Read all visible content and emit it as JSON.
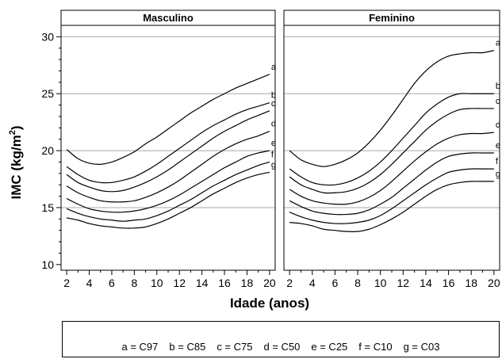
{
  "chart_data": {
    "type": "line",
    "ylabel": "IMC (kg/m²)",
    "ylabel_base": "IMC (kg/m",
    "ylabel_sup": "2",
    "ylabel_end": ")",
    "xlabel": "Idade (anos)",
    "xlim": [
      1.5,
      20.5
    ],
    "ylim": [
      9.5,
      31
    ],
    "yticks": [
      10,
      15,
      20,
      25,
      30
    ],
    "xticks": [
      2,
      4,
      6,
      8,
      10,
      12,
      14,
      16,
      18,
      20
    ],
    "grid": "horizontal at 15, 20, 25, 30",
    "legend": "bottom",
    "panels": [
      {
        "title": "Masculino",
        "series": [
          {
            "name": "a",
            "x": [
              2,
              3,
              4,
              5,
              6,
              7,
              8,
              9,
              10,
              11,
              12,
              13,
              14,
              15,
              16,
              17,
              18,
              19,
              20
            ],
            "y": [
              20.1,
              19.3,
              18.9,
              18.8,
              19.0,
              19.4,
              19.9,
              20.6,
              21.2,
              21.9,
              22.6,
              23.3,
              23.9,
              24.5,
              25.0,
              25.5,
              25.9,
              26.3,
              26.7
            ]
          },
          {
            "name": "b",
            "x": [
              2,
              3,
              4,
              5,
              6,
              7,
              8,
              9,
              10,
              11,
              12,
              13,
              14,
              15,
              16,
              17,
              18,
              19,
              20
            ],
            "y": [
              18.6,
              17.9,
              17.4,
              17.2,
              17.2,
              17.4,
              17.7,
              18.2,
              18.8,
              19.5,
              20.2,
              20.9,
              21.6,
              22.2,
              22.7,
              23.2,
              23.6,
              23.9,
              24.2
            ]
          },
          {
            "name": "c",
            "x": [
              2,
              3,
              4,
              5,
              6,
              7,
              8,
              9,
              10,
              11,
              12,
              13,
              14,
              15,
              16,
              17,
              18,
              19,
              20
            ],
            "y": [
              17.9,
              17.2,
              16.8,
              16.5,
              16.4,
              16.5,
              16.8,
              17.2,
              17.7,
              18.3,
              19.0,
              19.7,
              20.4,
              21.1,
              21.7,
              22.2,
              22.7,
              23.1,
              23.5
            ]
          },
          {
            "name": "d",
            "x": [
              2,
              3,
              4,
              5,
              6,
              7,
              8,
              9,
              10,
              11,
              12,
              13,
              14,
              15,
              16,
              17,
              18,
              19,
              20
            ],
            "y": [
              16.9,
              16.3,
              15.9,
              15.6,
              15.5,
              15.5,
              15.6,
              15.9,
              16.3,
              16.8,
              17.4,
              18.1,
              18.8,
              19.5,
              20.1,
              20.6,
              21.0,
              21.3,
              21.7
            ]
          },
          {
            "name": "e",
            "x": [
              2,
              3,
              4,
              5,
              6,
              7,
              8,
              9,
              10,
              11,
              12,
              13,
              14,
              15,
              16,
              17,
              18,
              19,
              20
            ],
            "y": [
              15.8,
              15.3,
              14.9,
              14.7,
              14.6,
              14.6,
              14.7,
              14.9,
              15.2,
              15.6,
              16.1,
              16.7,
              17.3,
              17.9,
              18.5,
              19.0,
              19.5,
              19.8,
              20.0
            ]
          },
          {
            "name": "f",
            "x": [
              2,
              3,
              4,
              5,
              6,
              7,
              8,
              9,
              10,
              11,
              12,
              13,
              14,
              15,
              16,
              17,
              18,
              19,
              20
            ],
            "y": [
              14.9,
              14.5,
              14.2,
              14.0,
              13.9,
              13.8,
              13.9,
              14.0,
              14.3,
              14.7,
              15.2,
              15.7,
              16.3,
              16.9,
              17.4,
              17.9,
              18.3,
              18.7,
              19.0
            ]
          },
          {
            "name": "g",
            "x": [
              2,
              3,
              4,
              5,
              6,
              7,
              8,
              9,
              10,
              11,
              12,
              13,
              14,
              15,
              16,
              17,
              18,
              19,
              20
            ],
            "y": [
              14.1,
              13.9,
              13.6,
              13.4,
              13.3,
              13.2,
              13.2,
              13.3,
              13.6,
              14.0,
              14.5,
              15.0,
              15.6,
              16.2,
              16.7,
              17.2,
              17.6,
              17.9,
              18.1
            ]
          }
        ]
      },
      {
        "title": "Feminino",
        "series": [
          {
            "name": "a",
            "x": [
              2,
              3,
              4,
              5,
              6,
              7,
              8,
              9,
              10,
              11,
              12,
              13,
              14,
              15,
              16,
              17,
              18,
              19,
              20
            ],
            "y": [
              20.0,
              19.2,
              18.8,
              18.6,
              18.8,
              19.2,
              19.8,
              20.7,
              21.8,
              23.1,
              24.5,
              25.9,
              27.0,
              27.8,
              28.3,
              28.5,
              28.6,
              28.6,
              28.8
            ]
          },
          {
            "name": "b",
            "x": [
              2,
              3,
              4,
              5,
              6,
              7,
              8,
              9,
              10,
              11,
              12,
              13,
              14,
              15,
              16,
              17,
              18,
              19,
              20
            ],
            "y": [
              18.4,
              17.7,
              17.2,
              17.0,
              17.0,
              17.2,
              17.6,
              18.2,
              19.0,
              20.0,
              21.1,
              22.2,
              23.3,
              24.1,
              24.7,
              25.0,
              25.0,
              25.0,
              25.0
            ]
          },
          {
            "name": "c",
            "x": [
              2,
              3,
              4,
              5,
              6,
              7,
              8,
              9,
              10,
              11,
              12,
              13,
              14,
              15,
              16,
              17,
              18,
              19,
              20
            ],
            "y": [
              17.7,
              17.0,
              16.6,
              16.3,
              16.3,
              16.4,
              16.7,
              17.2,
              17.9,
              18.8,
              19.8,
              20.8,
              21.8,
              22.6,
              23.2,
              23.6,
              23.7,
              23.7,
              23.7
            ]
          },
          {
            "name": "d",
            "x": [
              2,
              3,
              4,
              5,
              6,
              7,
              8,
              9,
              10,
              11,
              12,
              13,
              14,
              15,
              16,
              17,
              18,
              19,
              20
            ],
            "y": [
              16.6,
              16.0,
              15.6,
              15.4,
              15.3,
              15.3,
              15.5,
              15.9,
              16.5,
              17.3,
              18.2,
              19.1,
              19.9,
              20.6,
              21.1,
              21.4,
              21.5,
              21.5,
              21.6
            ]
          },
          {
            "name": "e",
            "x": [
              2,
              3,
              4,
              5,
              6,
              7,
              8,
              9,
              10,
              11,
              12,
              13,
              14,
              15,
              16,
              17,
              18,
              19,
              20
            ],
            "y": [
              15.6,
              15.1,
              14.7,
              14.5,
              14.4,
              14.4,
              14.5,
              14.8,
              15.3,
              15.9,
              16.7,
              17.5,
              18.3,
              19.0,
              19.5,
              19.7,
              19.8,
              19.8,
              19.8
            ]
          },
          {
            "name": "f",
            "x": [
              2,
              3,
              4,
              5,
              6,
              7,
              8,
              9,
              10,
              11,
              12,
              13,
              14,
              15,
              16,
              17,
              18,
              19,
              20
            ],
            "y": [
              14.6,
              14.2,
              13.9,
              13.7,
              13.6,
              13.6,
              13.7,
              13.9,
              14.3,
              14.9,
              15.6,
              16.3,
              17.0,
              17.6,
              18.1,
              18.3,
              18.4,
              18.4,
              18.4
            ]
          },
          {
            "name": "g",
            "x": [
              2,
              3,
              4,
              5,
              6,
              7,
              8,
              9,
              10,
              11,
              12,
              13,
              14,
              15,
              16,
              17,
              18,
              19,
              20
            ],
            "y": [
              13.7,
              13.6,
              13.4,
              13.1,
              13.0,
              12.9,
              12.9,
              13.1,
              13.5,
              14.0,
              14.6,
              15.3,
              16.0,
              16.6,
              17.0,
              17.2,
              17.3,
              17.3,
              17.3
            ]
          }
        ]
      }
    ],
    "legend_entries": [
      "a = C97",
      "b = C85",
      "c = C75",
      "d = C50",
      "e = C25",
      "f = C10",
      "g = C03"
    ]
  }
}
